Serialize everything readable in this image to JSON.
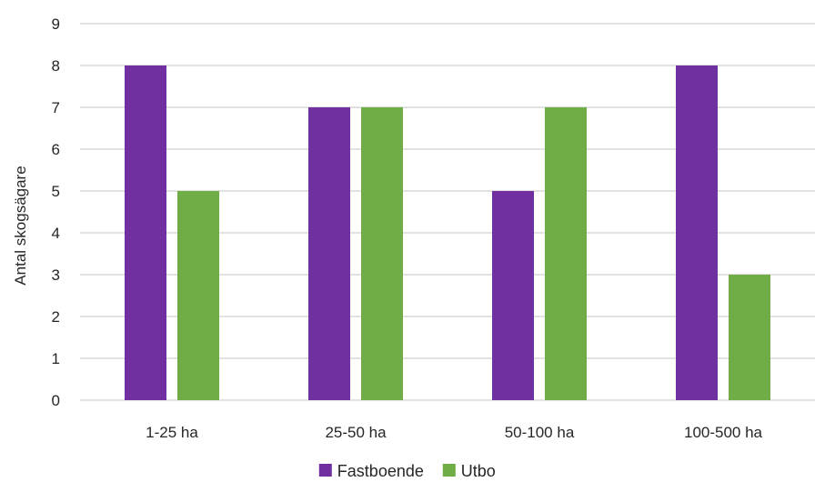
{
  "chart_data": {
    "type": "bar",
    "title": "",
    "xlabel": "",
    "ylabel": "Antal skogsägare",
    "categories": [
      "1-25 ha",
      "25-50 ha",
      "50-100 ha",
      "100-500 ha"
    ],
    "series": [
      {
        "name": "Fastboende",
        "values": [
          8,
          7,
          5,
          8
        ],
        "color": "#7030A0"
      },
      {
        "name": "Utbo",
        "values": [
          5,
          7,
          7,
          3
        ],
        "color": "#70AD47"
      }
    ],
    "ylim": [
      0,
      9
    ],
    "yticks": [
      0,
      1,
      2,
      3,
      4,
      5,
      6,
      7,
      8,
      9
    ],
    "grid": true,
    "gridColor": "#d9d9d9",
    "legend": "bottom"
  }
}
